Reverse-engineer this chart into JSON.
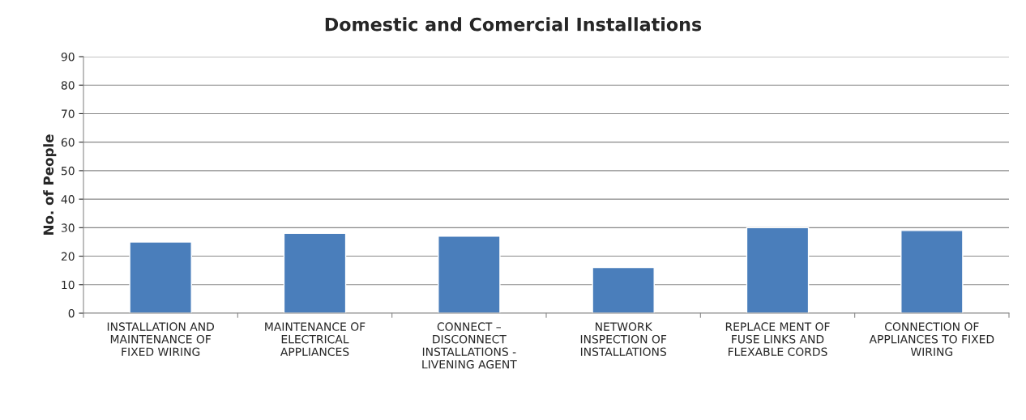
{
  "chart_data": {
    "type": "bar",
    "title": "Domestic and Comercial Installations",
    "ylabel": "No. of People",
    "categories": [
      "INSTALLATION AND\nMAINTENANCE OF\nFIXED WIRING",
      "MAINTENANCE OF\nELECTRICAL\nAPPLIANCES",
      "CONNECT –\nDISCONNECT\nINSTALLATIONS -\nLIVENING AGENT",
      "NETWORK\nINSPECTION OF\nINSTALLATIONS",
      "REPLACE MENT OF\nFUSE LINKS AND\nFLEXABLE CORDS",
      "CONNECTION OF\nAPPLIANCES TO FIXED\nWIRING"
    ],
    "values": [
      25,
      28,
      27,
      16,
      30,
      29
    ],
    "color": "#4a7ebb",
    "ylim": [
      0,
      90
    ],
    "yticks": [
      0,
      10,
      20,
      30,
      40,
      50,
      60,
      70,
      80,
      90
    ],
    "grid": "y",
    "legend": false
  }
}
